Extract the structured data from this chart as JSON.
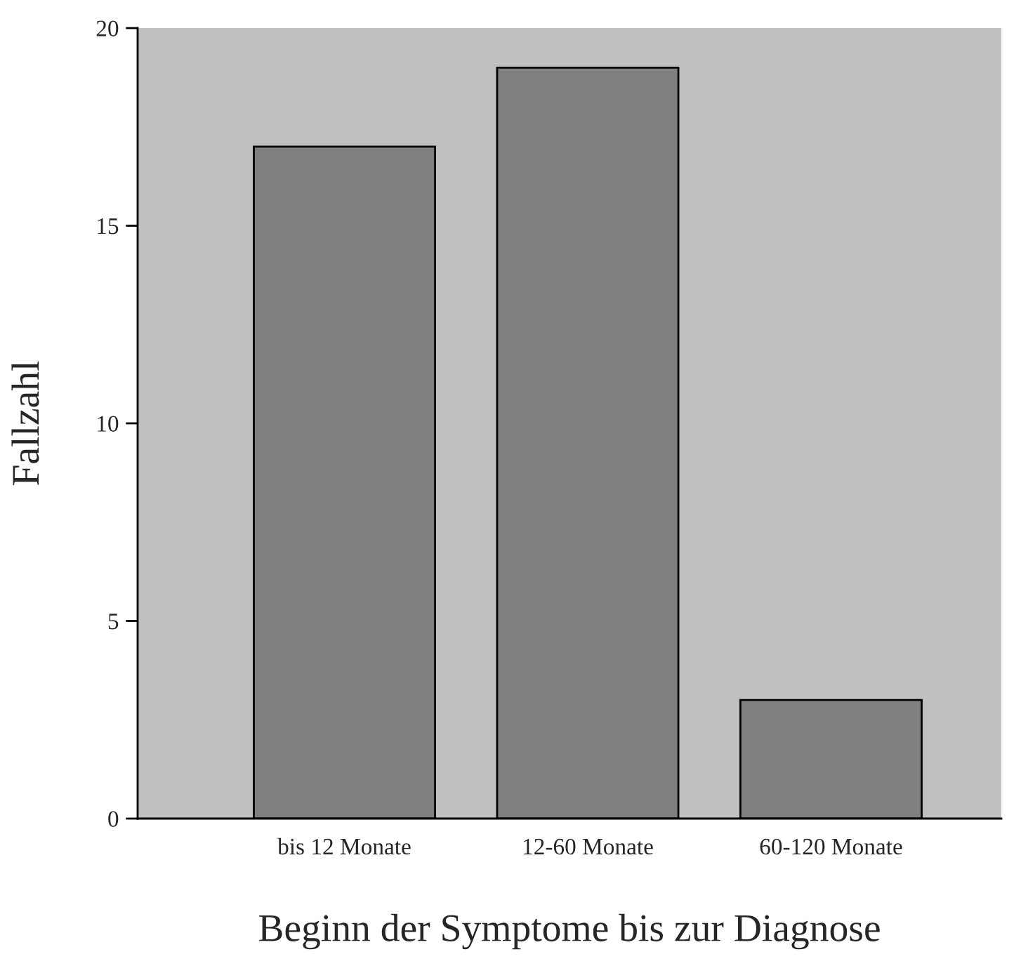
{
  "chart_data": {
    "type": "bar",
    "xlabel": "Beginn der Symptome bis zur Diagnose",
    "ylabel": "Fallzahl",
    "categories": [
      "bis 12 Monate",
      "12-60 Monate",
      "60-120 Monate"
    ],
    "values": [
      17,
      19,
      3
    ],
    "color": "#808080",
    "ylim": [
      0,
      20
    ],
    "yticks": [
      0,
      5,
      10,
      15,
      20
    ],
    "grid": false,
    "legend": false
  }
}
